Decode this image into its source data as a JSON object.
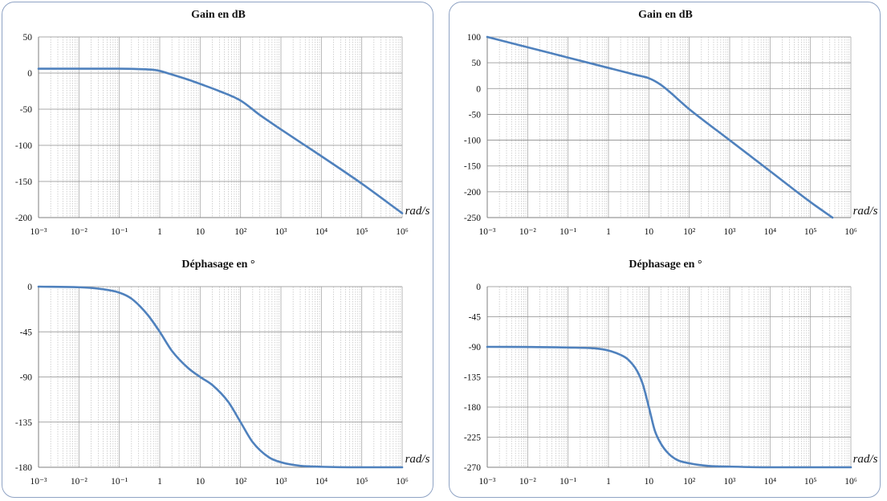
{
  "chart_data": [
    {
      "type": "line",
      "title": "Gain en dB",
      "xlabel": "rad/s",
      "xscale": "log",
      "xlim": [
        0.001,
        1000000
      ],
      "xticks": [
        "10⁻³",
        "10⁻²",
        "10⁻¹",
        "1",
        "10",
        "10²",
        "10³",
        "10⁴",
        "10⁵",
        "10⁶"
      ],
      "ylim": [
        -200,
        50
      ],
      "yticks": [
        50,
        0,
        -50,
        -100,
        -150,
        -200
      ],
      "grid": true,
      "color": "#4f81bd",
      "x": [
        0.001,
        0.01,
        0.1,
        0.3,
        0.7,
        1,
        2,
        5,
        10,
        30,
        100,
        300,
        1000,
        10000,
        100000,
        1000000
      ],
      "y": [
        6,
        6,
        6,
        5.5,
        4.5,
        3,
        -2,
        -9,
        -15,
        -25,
        -38,
        -58,
        -78,
        -115,
        -153,
        -194
      ]
    },
    {
      "type": "line",
      "title": "Déphasage en °",
      "xlabel": "rad/s",
      "xscale": "log",
      "xlim": [
        0.001,
        1000000
      ],
      "xticks": [
        "10⁻³",
        "10⁻²",
        "10⁻¹",
        "1",
        "10",
        "10²",
        "10³",
        "10⁴",
        "10⁵",
        "10⁶"
      ],
      "ylim": [
        -180,
        0
      ],
      "yticks": [
        0,
        -45,
        -90,
        -135,
        -180
      ],
      "grid": true,
      "color": "#4f81bd",
      "x": [
        0.001,
        0.01,
        0.03,
        0.1,
        0.2,
        0.5,
        1,
        2,
        5,
        10,
        20,
        50,
        100,
        200,
        500,
        1000,
        3000,
        10000,
        100000,
        1000000
      ],
      "y": [
        0,
        -0.6,
        -2,
        -6,
        -12,
        -28,
        -45,
        -64,
        -81,
        -90,
        -98,
        -115,
        -135,
        -155,
        -170,
        -175,
        -178.5,
        -179.5,
        -180,
        -180
      ]
    },
    {
      "type": "line",
      "title": "Gain en dB",
      "xlabel": "rad/s",
      "xscale": "log",
      "xlim": [
        0.001,
        1000000
      ],
      "xticks": [
        "10⁻³",
        "10⁻²",
        "10⁻¹",
        "1",
        "10",
        "10²",
        "10³",
        "10⁴",
        "10⁵",
        "10⁶"
      ],
      "ylim": [
        -250,
        100
      ],
      "yticks": [
        100,
        50,
        0,
        -50,
        -100,
        -150,
        -200,
        -250
      ],
      "grid": true,
      "color": "#4f81bd",
      "x": [
        0.001,
        0.01,
        0.1,
        1,
        5,
        10,
        20,
        100,
        1000,
        10000,
        100000,
        350000
      ],
      "y": [
        100,
        80,
        60,
        40,
        26,
        20,
        7,
        -40,
        -100,
        -160,
        -220,
        -250
      ]
    },
    {
      "type": "line",
      "title": "Déphasage en °",
      "xlabel": "rad/s",
      "xscale": "log",
      "xlim": [
        0.001,
        1000000
      ],
      "xticks": [
        "10⁻³",
        "10⁻²",
        "10⁻¹",
        "1",
        "10",
        "10²",
        "10³",
        "10⁴",
        "10⁵",
        "10⁶"
      ],
      "ylim": [
        -270,
        0
      ],
      "yticks": [
        0,
        -45,
        -90,
        -135,
        -180,
        -225,
        -270
      ],
      "grid": true,
      "color": "#4f81bd",
      "x": [
        0.001,
        0.01,
        0.1,
        0.5,
        1,
        2,
        3,
        5,
        7,
        10,
        14,
        20,
        30,
        50,
        100,
        300,
        1000,
        10000,
        100000,
        1000000
      ],
      "y": [
        -90,
        -90.2,
        -91,
        -92.5,
        -95.5,
        -102,
        -108.5,
        -125,
        -145,
        -180,
        -215,
        -235,
        -249,
        -259,
        -264,
        -268,
        -269,
        -270,
        -270,
        -270
      ]
    }
  ]
}
